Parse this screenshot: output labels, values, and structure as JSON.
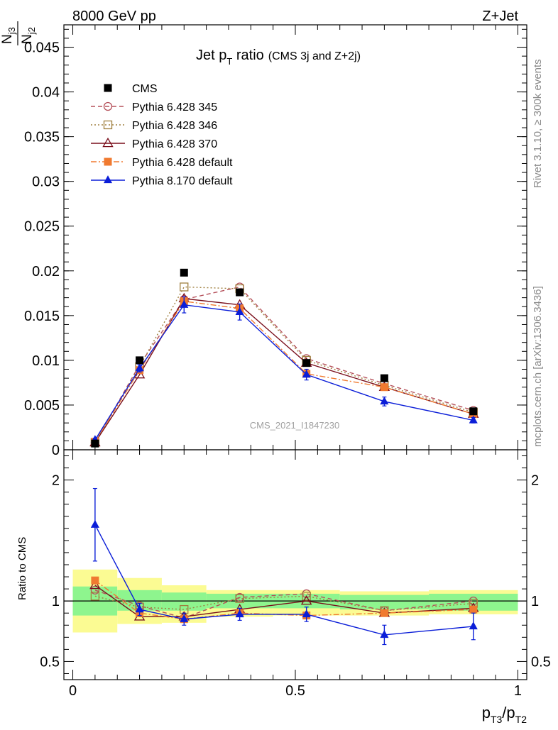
{
  "header": {
    "left": "8000 GeV pp",
    "right": "Z+Jet"
  },
  "plot": {
    "title_main": "Jet p",
    "title_sub": "T",
    "title_rest": " ratio",
    "title_small": "(CMS 3j and Z+2j)",
    "watermark": "CMS_2021_I1847230",
    "side_rivet": "Rivet 3.1.10, ≥ 300k events",
    "side_mcplots": "mcplots.cern.ch [arXiv:1306.3436]",
    "ylabel_top_num": "N",
    "ylabel_top_num_sub": "j3",
    "ylabel_top_den": "N",
    "ylabel_top_den_sub": "j2",
    "ylabel_ratio": "Ratio to CMS",
    "xlabel_p1": "p",
    "xlabel_sub1": "T3",
    "xlabel_slash": "/p",
    "xlabel_sub2": "T2"
  },
  "chart_data": [
    {
      "type": "line",
      "panel": "main",
      "x": [
        0.05,
        0.15,
        0.25,
        0.375,
        0.525,
        0.7,
        0.9
      ],
      "xlim": [
        -0.02,
        1.02
      ],
      "ylim": [
        0,
        0.0475
      ],
      "yticks": [
        0,
        0.005,
        0.01,
        0.015,
        0.02,
        0.025,
        0.03,
        0.035,
        0.04,
        0.045
      ],
      "ytick_labels": [
        "0",
        "0.005",
        "0.01",
        "0.015",
        "0.02",
        "0.025",
        "0.03",
        "0.035",
        "0.04",
        "0.045"
      ],
      "data": {
        "name": "CMS",
        "values": [
          0.0007,
          0.01,
          0.0198,
          0.0176,
          0.0097,
          0.008,
          0.0043
        ]
      },
      "series": [
        {
          "name": "Pythia 6.428 345",
          "color": "#b5505a",
          "dash": "6,4",
          "marker": "open-circle",
          "values": [
            0.0008,
            0.0095,
            0.0168,
            0.0182,
            0.0102,
            0.0074,
            0.0044
          ]
        },
        {
          "name": "Pythia 6.428 346",
          "color": "#a08040",
          "dash": "2,3",
          "marker": "open-square",
          "values": [
            0.0008,
            0.0093,
            0.0182,
            0.018,
            0.01,
            0.0072,
            0.0042
          ]
        },
        {
          "name": "Pythia 6.428 370",
          "color": "#7a0f1c",
          "dash": "",
          "marker": "open-triangle",
          "values": [
            0.0008,
            0.0084,
            0.0169,
            0.0162,
            0.0097,
            0.007,
            0.004
          ]
        },
        {
          "name": "Pythia 6.428 default",
          "color": "#f07a30",
          "dash": "8,3,2,3",
          "marker": "filled-square",
          "values": [
            0.0009,
            0.0089,
            0.0166,
            0.0158,
            0.0085,
            0.007,
            0.004
          ]
        },
        {
          "name": "Pythia 8.170 default",
          "color": "#0b1ed8",
          "dash": "",
          "marker": "filled-triangle",
          "values": [
            0.0011,
            0.0091,
            0.0162,
            0.0154,
            0.0084,
            0.0054,
            0.0033
          ],
          "err": [
            0.0002,
            0.0004,
            0.0009,
            0.0009,
            0.0006,
            0.0005,
            0.0003
          ]
        }
      ]
    },
    {
      "type": "line",
      "panel": "ratio",
      "x": [
        0.05,
        0.15,
        0.25,
        0.375,
        0.525,
        0.7,
        0.9
      ],
      "xlim": [
        -0.02,
        1.02
      ],
      "ylim": [
        0.35,
        2.25
      ],
      "yticks": [
        0.5,
        1,
        2
      ],
      "ytick_labels": [
        "0.5",
        "1",
        "2"
      ],
      "xticks": [
        0,
        0.5,
        1
      ],
      "xtick_labels": [
        "0",
        "0.5",
        "1"
      ],
      "bands": {
        "edges": [
          0,
          0.1,
          0.2,
          0.3,
          0.45,
          0.6,
          0.8,
          1.0
        ],
        "inner_lo": [
          0.88,
          0.92,
          0.92,
          0.94,
          0.94,
          0.93,
          0.92
        ],
        "inner_hi": [
          1.12,
          1.09,
          1.07,
          1.06,
          1.06,
          1.05,
          1.06
        ],
        "outer_lo": [
          0.74,
          0.81,
          0.82,
          0.87,
          0.88,
          0.88,
          0.89
        ],
        "outer_hi": [
          1.26,
          1.19,
          1.13,
          1.09,
          1.09,
          1.08,
          1.09
        ],
        "inner_color": "#8ef58e",
        "outer_color": "#fbfb93"
      },
      "series": [
        {
          "name": "Pythia 6.428 345",
          "values": [
            1.09,
            0.96,
            0.86,
            1.03,
            1.06,
            0.92,
            1.0
          ]
        },
        {
          "name": "Pythia 6.428 346",
          "values": [
            1.04,
            0.95,
            0.93,
            1.02,
            1.04,
            0.92,
            0.98
          ]
        },
        {
          "name": "Pythia 6.428 370",
          "values": [
            1.13,
            0.87,
            0.87,
            0.93,
            1.0,
            0.9,
            0.94
          ]
        },
        {
          "name": "Pythia 6.428 default",
          "values": [
            1.17,
            0.9,
            0.85,
            0.9,
            0.88,
            0.9,
            0.93
          ]
        },
        {
          "name": "Pythia 8.170 default",
          "values": [
            1.63,
            0.93,
            0.85,
            0.89,
            0.89,
            0.72,
            0.79
          ],
          "err": [
            0.3,
            0.05,
            0.05,
            0.05,
            0.06,
            0.08,
            0.11
          ]
        }
      ]
    }
  ]
}
